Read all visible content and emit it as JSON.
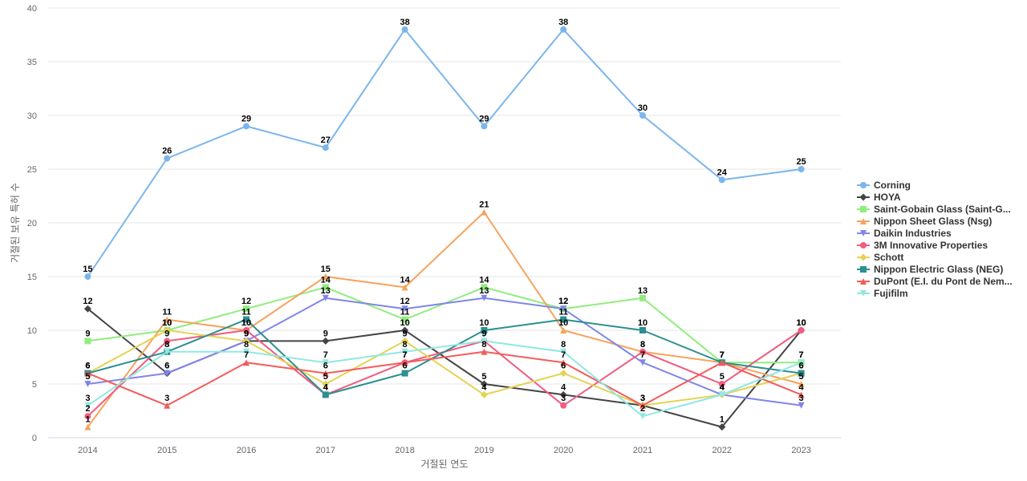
{
  "chart_data": {
    "type": "line",
    "title": "",
    "xlabel": "거절된 연도",
    "ylabel": "거절된 보유 특허 수",
    "x": [
      "2014",
      "2015",
      "2016",
      "2017",
      "2018",
      "2019",
      "2020",
      "2021",
      "2022",
      "2023"
    ],
    "ylim": [
      0,
      40
    ],
    "yticks": [
      0,
      5,
      10,
      15,
      20,
      25,
      30,
      35,
      40
    ],
    "grid": true,
    "legend_position": "right",
    "series": [
      {
        "name": "Corning",
        "color": "#7cb5ec",
        "marker": "circle",
        "values": [
          15,
          26,
          29,
          27,
          38,
          29,
          38,
          30,
          24,
          25
        ]
      },
      {
        "name": "HOYA",
        "color": "#434348",
        "marker": "diamond",
        "values": [
          12,
          6,
          9,
          9,
          10,
          5,
          4,
          3,
          1,
          10
        ]
      },
      {
        "name": "Saint-Gobain Glass (Saint-G...",
        "color": "#90ed7d",
        "marker": "square",
        "values": [
          9,
          10,
          12,
          14,
          11,
          14,
          12,
          13,
          7,
          7
        ]
      },
      {
        "name": "Nippon Sheet Glass (Nsg)",
        "color": "#f7a35c",
        "marker": "triangle",
        "values": [
          1,
          11,
          10,
          15,
          14,
          21,
          10,
          8,
          7,
          5
        ]
      },
      {
        "name": "Daikin Industries",
        "color": "#8085e9",
        "marker": "triangle-down",
        "values": [
          5,
          6,
          9,
          13,
          12,
          13,
          12,
          7,
          4,
          3
        ]
      },
      {
        "name": "3M Innovative Properties",
        "color": "#f15c80",
        "marker": "circle",
        "values": [
          2,
          9,
          10,
          4,
          7,
          9,
          3,
          8,
          5,
          10
        ]
      },
      {
        "name": "Schott",
        "color": "#e4d354",
        "marker": "diamond",
        "values": [
          6,
          10,
          9,
          5,
          9,
          4,
          6,
          3,
          4,
          6
        ]
      },
      {
        "name": "Nippon Electric Glass (NEG)",
        "color": "#2b908f",
        "marker": "square",
        "values": [
          6,
          8,
          11,
          4,
          6,
          10,
          11,
          10,
          7,
          6
        ]
      },
      {
        "name": "DuPont (E.I. du Pont de Nem...",
        "color": "#f45b5b",
        "marker": "triangle",
        "values": [
          6,
          3,
          7,
          6,
          7,
          8,
          7,
          3,
          7,
          4
        ]
      },
      {
        "name": "Fujifilm",
        "color": "#91e8e1",
        "marker": "triangle-down",
        "values": [
          3,
          8,
          8,
          7,
          8,
          9,
          8,
          2,
          4,
          7
        ]
      }
    ]
  }
}
